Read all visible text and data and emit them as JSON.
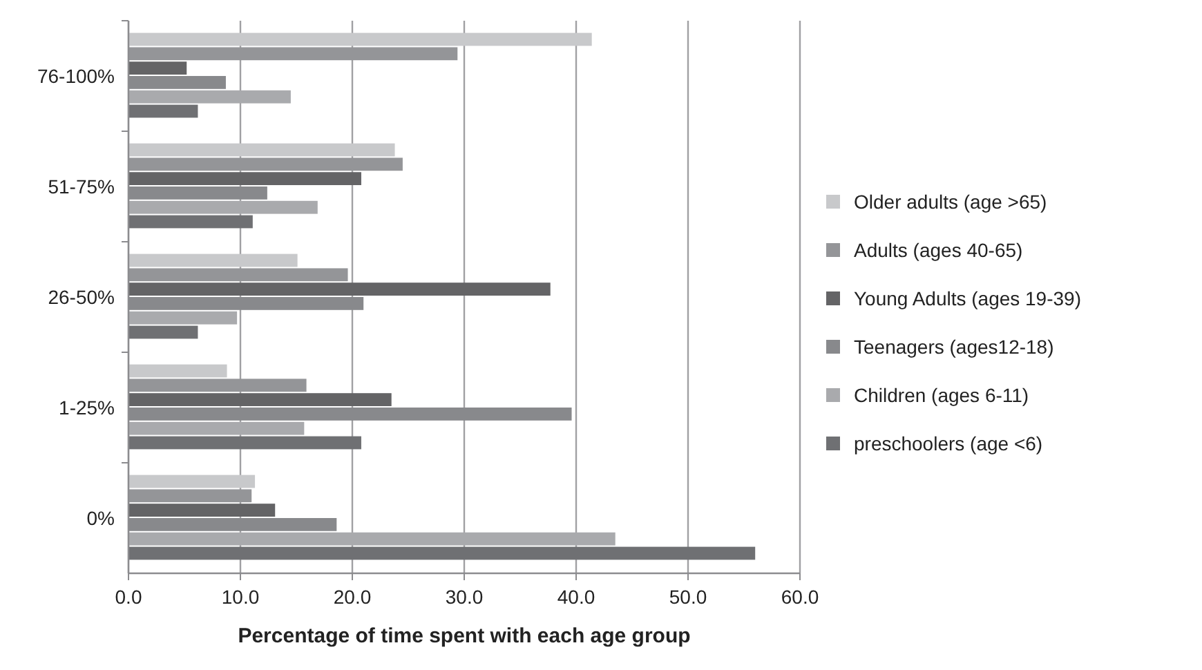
{
  "chart_data": {
    "type": "bar",
    "orientation": "horizontal",
    "xlabel": "Percentage of time spent with each age group",
    "categories": [
      "76-100%",
      "51-75%",
      "26-50%",
      "1-25%",
      "0%"
    ],
    "series": [
      {
        "name": "Older adults (age >65)",
        "color": "#c8c9cb",
        "values": [
          41.4,
          23.8,
          15.1,
          8.8,
          11.3
        ]
      },
      {
        "name": "Adults (ages 40-65)",
        "color": "#949598",
        "values": [
          29.4,
          24.5,
          19.6,
          15.9,
          11.0
        ]
      },
      {
        "name": "Young Adults (ages 19-39)",
        "color": "#646466",
        "values": [
          5.2,
          20.8,
          37.7,
          23.5,
          13.1
        ]
      },
      {
        "name": "Teenagers (ages12-18)",
        "color": "#88898c",
        "values": [
          8.7,
          12.4,
          21.0,
          39.6,
          18.6
        ]
      },
      {
        "name": "Children (ages 6-11)",
        "color": "#a9aaad",
        "values": [
          14.5,
          16.9,
          9.7,
          15.7,
          43.5
        ]
      },
      {
        "name": "preschoolers (age <6)",
        "color": "#6f7073",
        "values": [
          6.2,
          11.1,
          6.2,
          20.8,
          56.0
        ]
      }
    ],
    "xlim": [
      0,
      60
    ],
    "xticks": [
      {
        "value": 0,
        "label": "0.0"
      },
      {
        "value": 10,
        "label": "10.0"
      },
      {
        "value": 20,
        "label": "20.0"
      },
      {
        "value": 30,
        "label": "30.0"
      },
      {
        "value": 40,
        "label": "40.0"
      },
      {
        "value": 50,
        "label": "50.0"
      },
      {
        "value": 60,
        "label": "60.0"
      }
    ],
    "grid": "x",
    "legend": "right"
  }
}
